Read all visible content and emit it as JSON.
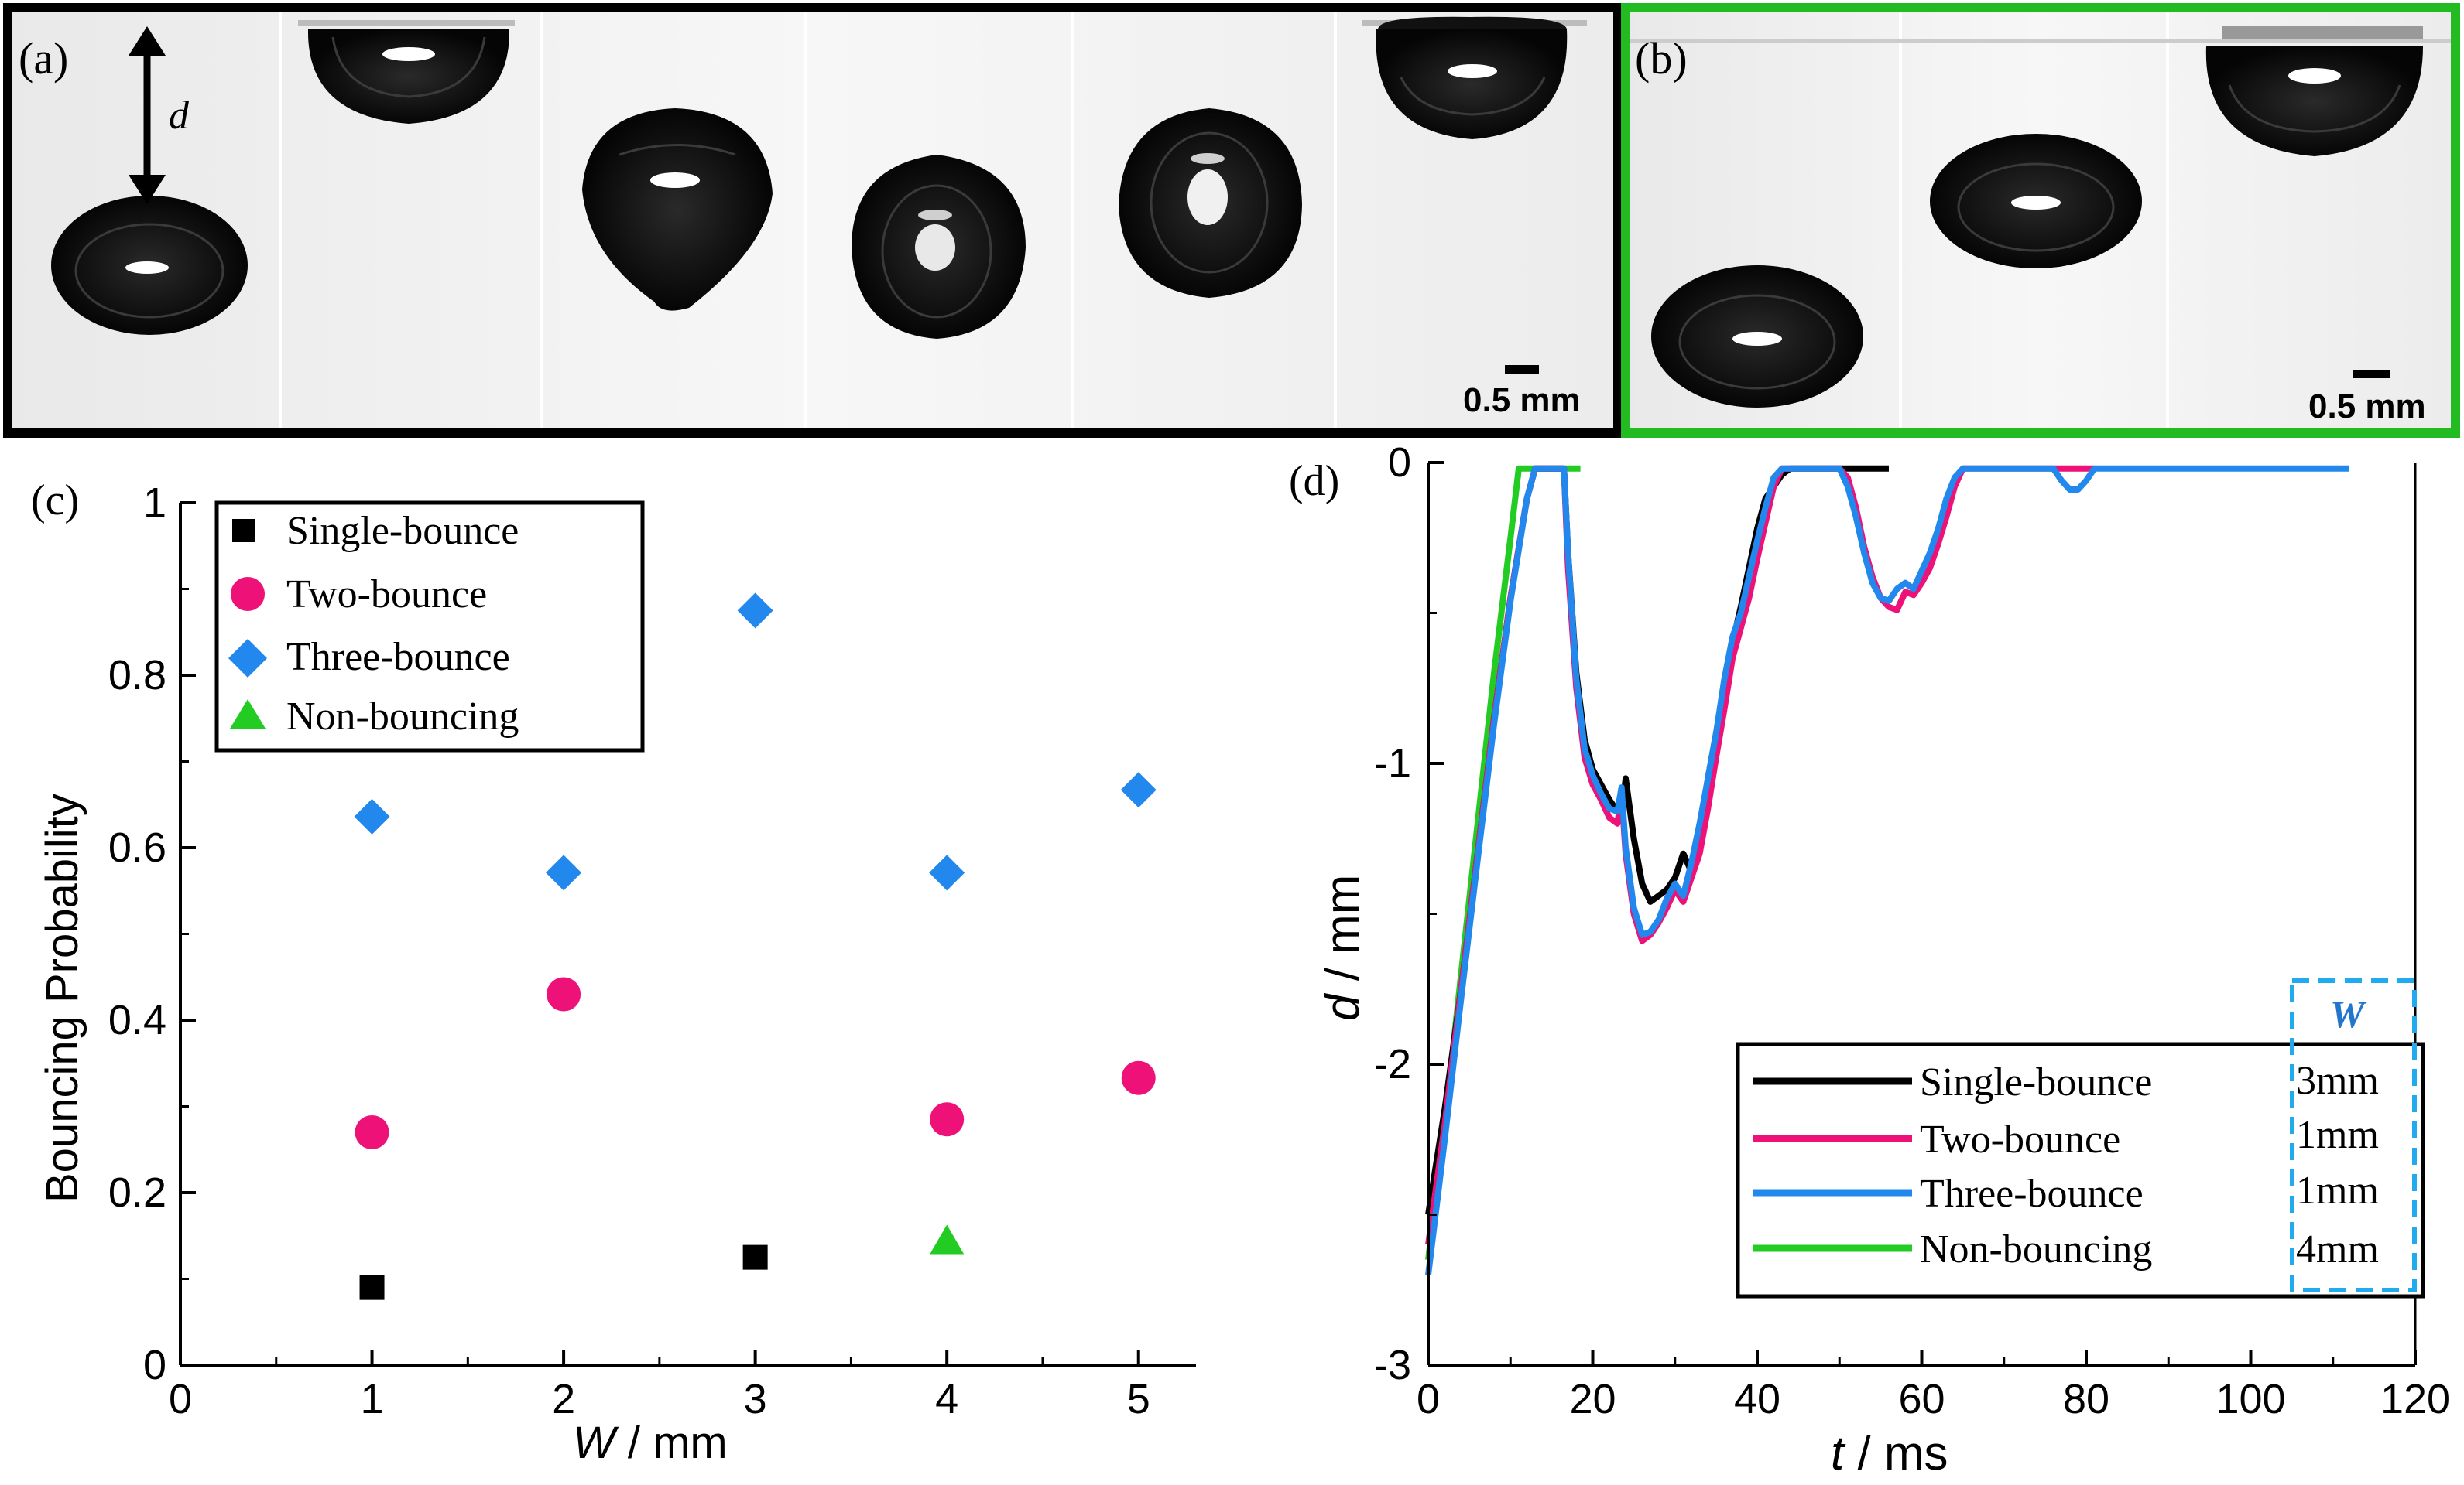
{
  "panels": {
    "a": {
      "label": "(a)",
      "scale_bar": "0.5 mm",
      "d_label": "d",
      "frame_color": "#000000"
    },
    "b": {
      "label": "(b)",
      "scale_bar": "0.5 mm",
      "frame_color": "#22bb22"
    }
  },
  "colors": {
    "single": "#000000",
    "two": "#ee1177",
    "three": "#2288ee",
    "non": "#22cc22",
    "w_box": "#22aaee"
  },
  "chart_data": [
    {
      "panel": "(c)",
      "type": "scatter",
      "xlabel_var": "W",
      "xlabel_unit": " / mm",
      "ylabel": "Bouncing Probability",
      "xlim": [
        0,
        5.3
      ],
      "ylim": [
        0,
        1
      ],
      "xticks": [
        "0",
        "1",
        "2",
        "3",
        "4",
        "5"
      ],
      "yticks": [
        "0",
        "0.2",
        "0.4",
        "0.6",
        "0.8",
        "1"
      ],
      "legend": [
        "Single-bounce",
        "Two-bounce",
        "Three-bounce",
        "Non-bouncing"
      ],
      "series": [
        {
          "name": "Single-bounce",
          "marker": "square",
          "points": [
            [
              1,
              0.09
            ],
            [
              3,
              0.125
            ]
          ]
        },
        {
          "name": "Two-bounce",
          "marker": "circle",
          "points": [
            [
              1,
              0.27
            ],
            [
              2,
              0.43
            ],
            [
              4,
              0.285
            ],
            [
              5,
              0.333
            ]
          ]
        },
        {
          "name": "Three-bounce",
          "marker": "diamond",
          "points": [
            [
              1,
              0.636
            ],
            [
              2,
              0.571
            ],
            [
              3,
              0.875
            ],
            [
              4,
              0.571
            ],
            [
              5,
              0.667
            ]
          ]
        },
        {
          "name": "Non-bouncing",
          "marker": "triangle",
          "points": [
            [
              4,
              0.143
            ]
          ]
        }
      ]
    },
    {
      "panel": "(d)",
      "type": "line",
      "xlabel_var": "t",
      "xlabel_unit": "  / ms",
      "ylabel_var": "d",
      "ylabel_unit": " / mm",
      "xlim": [
        0,
        120
      ],
      "ylim": [
        -3,
        0
      ],
      "xticks": [
        "0",
        "20",
        "40",
        "60",
        "80",
        "100",
        "120"
      ],
      "yticks": [
        "-3",
        "-2",
        "-1",
        "0"
      ],
      "legend_title": "W",
      "legend": [
        {
          "name": "Single-bounce",
          "w": "3mm"
        },
        {
          "name": "Two-bounce",
          "w": "1mm"
        },
        {
          "name": "Three-bounce",
          "w": "1mm"
        },
        {
          "name": "Non-bouncing",
          "w": "4mm"
        }
      ],
      "series": [
        {
          "name": "Non-bouncing",
          "points": [
            [
              0,
              -2.65
            ],
            [
              2,
              -2.2
            ],
            [
              4,
              -1.7
            ],
            [
              6,
              -1.2
            ],
            [
              8,
              -0.7
            ],
            [
              10,
              -0.25
            ],
            [
              11,
              -0.02
            ],
            [
              13,
              -0.02
            ],
            [
              15,
              -0.02
            ],
            [
              17,
              -0.02
            ],
            [
              18.5,
              -0.02
            ]
          ]
        },
        {
          "name": "Single-bounce",
          "points": [
            [
              0,
              -2.5
            ],
            [
              2,
              -2.15
            ],
            [
              4,
              -1.75
            ],
            [
              6,
              -1.3
            ],
            [
              8,
              -0.85
            ],
            [
              10,
              -0.45
            ],
            [
              12,
              -0.12
            ],
            [
              13,
              -0.02
            ],
            [
              15,
              -0.02
            ],
            [
              16.5,
              -0.02
            ],
            [
              17,
              -0.3
            ],
            [
              18,
              -0.7
            ],
            [
              19,
              -0.92
            ],
            [
              20,
              -1.02
            ],
            [
              22,
              -1.12
            ],
            [
              23.5,
              -1.18
            ],
            [
              24,
              -1.05
            ],
            [
              25,
              -1.25
            ],
            [
              26,
              -1.4
            ],
            [
              27,
              -1.46
            ],
            [
              28,
              -1.44
            ],
            [
              29,
              -1.42
            ],
            [
              30,
              -1.38
            ],
            [
              31,
              -1.3
            ],
            [
              32,
              -1.36
            ],
            [
              33,
              -1.22
            ],
            [
              34,
              -1.05
            ],
            [
              35,
              -0.9
            ],
            [
              36,
              -0.75
            ],
            [
              37,
              -0.6
            ],
            [
              38,
              -0.48
            ],
            [
              39,
              -0.35
            ],
            [
              40,
              -0.22
            ],
            [
              41,
              -0.12
            ],
            [
              42,
              -0.08
            ],
            [
              43,
              -0.04
            ],
            [
              44,
              -0.02
            ],
            [
              56,
              -0.02
            ]
          ]
        },
        {
          "name": "Two-bounce",
          "points": [
            [
              0,
              -2.6
            ],
            [
              2,
              -2.2
            ],
            [
              4,
              -1.75
            ],
            [
              6,
              -1.3
            ],
            [
              8,
              -0.85
            ],
            [
              10,
              -0.45
            ],
            [
              12,
              -0.12
            ],
            [
              13,
              -0.02
            ],
            [
              15,
              -0.02
            ],
            [
              16.5,
              -0.02
            ],
            [
              17,
              -0.35
            ],
            [
              18,
              -0.75
            ],
            [
              19,
              -0.98
            ],
            [
              20,
              -1.07
            ],
            [
              21,
              -1.12
            ],
            [
              22,
              -1.18
            ],
            [
              23,
              -1.2
            ],
            [
              23.5,
              -1.1
            ],
            [
              24,
              -1.3
            ],
            [
              25,
              -1.5
            ],
            [
              26,
              -1.59
            ],
            [
              27,
              -1.57
            ],
            [
              28,
              -1.53
            ],
            [
              29,
              -1.48
            ],
            [
              30,
              -1.42
            ],
            [
              31,
              -1.46
            ],
            [
              32,
              -1.38
            ],
            [
              33,
              -1.3
            ],
            [
              34,
              -1.15
            ],
            [
              35,
              -0.98
            ],
            [
              36,
              -0.82
            ],
            [
              37,
              -0.65
            ],
            [
              38,
              -0.55
            ],
            [
              39,
              -0.45
            ],
            [
              40,
              -0.32
            ],
            [
              41,
              -0.2
            ],
            [
              42,
              -0.08
            ],
            [
              43,
              -0.02
            ],
            [
              50,
              -0.02
            ],
            [
              51,
              -0.05
            ],
            [
              52,
              -0.15
            ],
            [
              53,
              -0.28
            ],
            [
              54,
              -0.38
            ],
            [
              55,
              -0.45
            ],
            [
              56,
              -0.48
            ],
            [
              57,
              -0.49
            ],
            [
              58,
              -0.43
            ],
            [
              59,
              -0.44
            ],
            [
              60,
              -0.4
            ],
            [
              61,
              -0.35
            ],
            [
              62,
              -0.27
            ],
            [
              63,
              -0.18
            ],
            [
              64,
              -0.08
            ],
            [
              65,
              -0.02
            ],
            [
              76,
              -0.02
            ],
            [
              77,
              -0.02
            ],
            [
              80,
              -0.02
            ],
            [
              81,
              -0.02
            ]
          ]
        },
        {
          "name": "Three-bounce",
          "points": [
            [
              0,
              -2.7
            ],
            [
              2,
              -2.25
            ],
            [
              4,
              -1.78
            ],
            [
              6,
              -1.32
            ],
            [
              8,
              -0.87
            ],
            [
              10,
              -0.46
            ],
            [
              12,
              -0.12
            ],
            [
              13,
              -0.02
            ],
            [
              15,
              -0.02
            ],
            [
              16.5,
              -0.02
            ],
            [
              17,
              -0.3
            ],
            [
              18,
              -0.72
            ],
            [
              19,
              -0.95
            ],
            [
              20,
              -1.04
            ],
            [
              21,
              -1.1
            ],
            [
              22,
              -1.15
            ],
            [
              23,
              -1.16
            ],
            [
              23.5,
              -1.08
            ],
            [
              24,
              -1.28
            ],
            [
              25,
              -1.48
            ],
            [
              26,
              -1.57
            ],
            [
              27,
              -1.56
            ],
            [
              28,
              -1.52
            ],
            [
              29,
              -1.45
            ],
            [
              30,
              -1.4
            ],
            [
              31,
              -1.44
            ],
            [
              32,
              -1.33
            ],
            [
              33,
              -1.2
            ],
            [
              34,
              -1.05
            ],
            [
              35,
              -0.9
            ],
            [
              36,
              -0.72
            ],
            [
              37,
              -0.58
            ],
            [
              38,
              -0.5
            ],
            [
              39,
              -0.38
            ],
            [
              40,
              -0.26
            ],
            [
              41,
              -0.15
            ],
            [
              42,
              -0.05
            ],
            [
              43,
              -0.02
            ],
            [
              50,
              -0.02
            ],
            [
              51,
              -0.08
            ],
            [
              52,
              -0.18
            ],
            [
              53,
              -0.3
            ],
            [
              54,
              -0.4
            ],
            [
              55,
              -0.45
            ],
            [
              56,
              -0.46
            ],
            [
              57,
              -0.42
            ],
            [
              58,
              -0.4
            ],
            [
              59,
              -0.42
            ],
            [
              60,
              -0.36
            ],
            [
              61,
              -0.3
            ],
            [
              62,
              -0.22
            ],
            [
              63,
              -0.12
            ],
            [
              64,
              -0.05
            ],
            [
              65,
              -0.02
            ],
            [
              76,
              -0.02
            ],
            [
              77,
              -0.06
            ],
            [
              78,
              -0.09
            ],
            [
              79,
              -0.09
            ],
            [
              80,
              -0.06
            ],
            [
              81,
              -0.02
            ],
            [
              112,
              -0.02
            ]
          ]
        }
      ]
    }
  ]
}
